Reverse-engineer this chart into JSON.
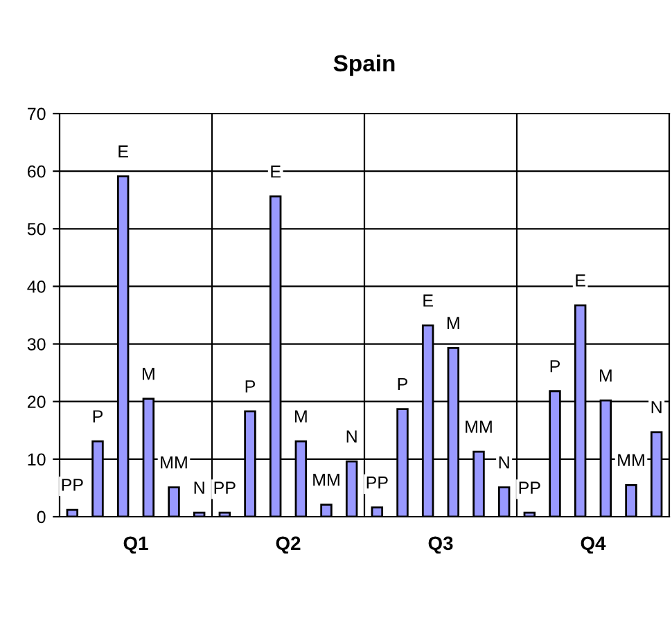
{
  "chart_data": {
    "type": "bar",
    "title": "Spain",
    "categories": [
      "Q1",
      "Q2",
      "Q3",
      "Q4"
    ],
    "series": [
      {
        "name": "PP",
        "color": "#9999ff",
        "values": [
          1.2,
          0.7,
          1.6,
          0.7
        ]
      },
      {
        "name": "P",
        "color": "#9999ff",
        "values": [
          13.1,
          18.3,
          18.7,
          21.8
        ]
      },
      {
        "name": "E",
        "color": "#9999ff",
        "values": [
          59.1,
          55.6,
          33.2,
          36.7
        ]
      },
      {
        "name": "M",
        "color": "#9999ff",
        "values": [
          20.5,
          13.1,
          29.3,
          20.2
        ]
      },
      {
        "name": "MM",
        "color": "#9999ff",
        "values": [
          5.1,
          2.1,
          11.3,
          5.5
        ]
      },
      {
        "name": "N",
        "color": "#9999ff",
        "values": [
          0.7,
          9.6,
          5.1,
          14.7
        ]
      }
    ],
    "ylim": [
      0,
      70
    ],
    "yticks": [
      0,
      10,
      20,
      30,
      40,
      50,
      60,
      70
    ],
    "grid": true,
    "legend": false
  }
}
